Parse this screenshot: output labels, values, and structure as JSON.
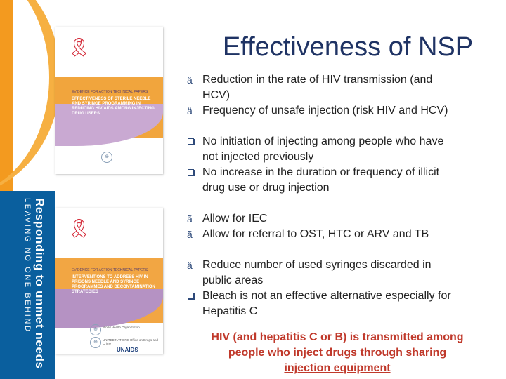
{
  "slide": {
    "title": "Effectiveness of NSP",
    "brand": {
      "slogan_main": "Responding to unmet needs",
      "slogan_sub": "LEAVING NO ONE BEHIND",
      "colors": {
        "orange": "#f39a1f",
        "blue": "#0a5f9e",
        "title": "#1f3364",
        "conclusion": "#c0392b"
      }
    },
    "bullets": [
      {
        "marker": "ä",
        "marker_icon": "arrow-bullet-icon",
        "text": "Reduction  in the rate of HIV transmission (and",
        "cont": "HCV)"
      },
      {
        "marker": "ä",
        "marker_icon": "arrow-bullet-icon",
        "text": "Frequency of  unsafe injection (risk HIV and HCV)"
      },
      {
        "marker": "q",
        "marker_icon": "checkbox-bullet-icon",
        "text": "No initiation of injecting among people who have",
        "cont": "not injected previously"
      },
      {
        "marker": "q",
        "marker_icon": "checkbox-bullet-icon",
        "text": "No increase in the duration or frequency of illicit",
        "cont": "drug use or drug injection"
      },
      {
        "marker": "ã",
        "marker_icon": "arrow-bullet-icon",
        "text": "Allow for IEC"
      },
      {
        "marker": "ã",
        "marker_icon": "arrow-bullet-icon",
        "text": "Allow for referral to OST, HTC or ARV and TB"
      },
      {
        "marker": "ä",
        "marker_icon": "arrow-bullet-icon",
        "text": "Reduce number of used syringes discarded in",
        "cont": "public areas"
      },
      {
        "marker": "q",
        "marker_icon": "checkbox-bullet-icon",
        "text": "Bleach is not an effective alternative especially for",
        "cont": "Hepatitis C"
      }
    ],
    "conclusion": {
      "line1": "HIV (and hepatitis C or B) is transmitted among",
      "line2_plain": "people who inject drugs ",
      "line2_underlined": "through sharing",
      "line3_underlined": "injection equipment"
    }
  },
  "covers": [
    {
      "series": "EVIDENCE FOR ACTION TECHNICAL PAPERS",
      "title": "EFFECTIVENESS OF STERILE NEEDLE AND SYRINGE PROGRAMMING IN REDUCING HIV/AIDS AMONG INJECTING DRUG USERS",
      "icons": [
        "red-ribbon-icon",
        "who-emblem-icon"
      ]
    },
    {
      "series": "EVIDENCE FOR ACTION TECHNICAL PAPERS",
      "title": "INTERVENTIONS TO ADDRESS HIV IN PRISONS NEEDLE AND SYRINGE PROGRAMMES AND DECONTAMINATION STRATEGIES",
      "org_who": "World Health Organization",
      "org_unodc": "UNITED NATIONS Office on Drugs and Crime",
      "unaids": "UNAIDS",
      "icons": [
        "red-ribbon-icon",
        "who-emblem-icon",
        "unodc-emblem-icon"
      ]
    }
  ]
}
